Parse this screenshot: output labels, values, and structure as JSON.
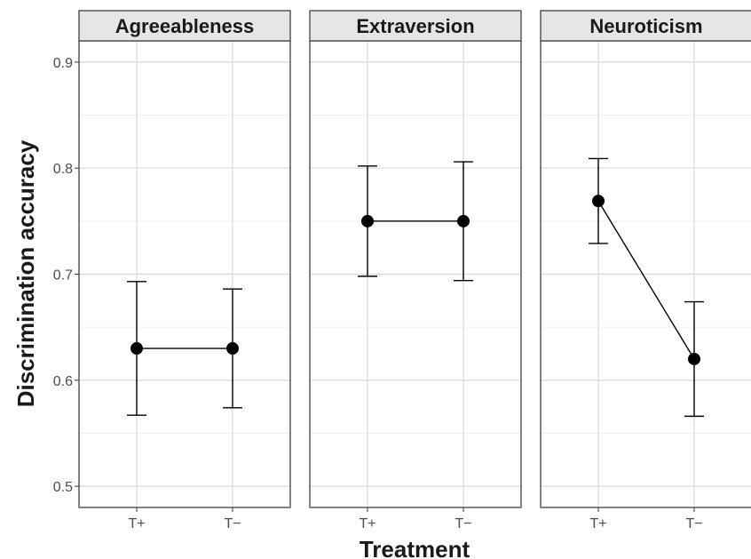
{
  "chart_data": {
    "type": "line",
    "xlabel": "Treatment",
    "ylabel": "Discrimination accuracy",
    "categories": [
      "T+",
      "T−"
    ],
    "ylim": [
      0.48,
      0.92
    ],
    "yticks": [
      0.5,
      0.6,
      0.7,
      0.8,
      0.9
    ],
    "ytick_labels": [
      "0.5",
      "0.6",
      "0.7",
      "0.8",
      "0.9"
    ],
    "grid": true,
    "facets": [
      {
        "name": "Agreeableness",
        "values": [
          0.63,
          0.63
        ],
        "error_low": [
          0.567,
          0.574
        ],
        "error_high": [
          0.693,
          0.686
        ]
      },
      {
        "name": "Extraversion",
        "values": [
          0.75,
          0.75
        ],
        "error_low": [
          0.698,
          0.694
        ],
        "error_high": [
          0.802,
          0.806
        ]
      },
      {
        "name": "Neuroticism",
        "values": [
          0.769,
          0.62
        ],
        "error_low": [
          0.729,
          0.566
        ],
        "error_high": [
          0.809,
          0.674
        ]
      }
    ],
    "colors": {
      "point": "#000000",
      "strip_fill": "#e6e6e6",
      "grid_major": "#d9d9d9",
      "grid_minor": "#f0f0f0"
    }
  }
}
